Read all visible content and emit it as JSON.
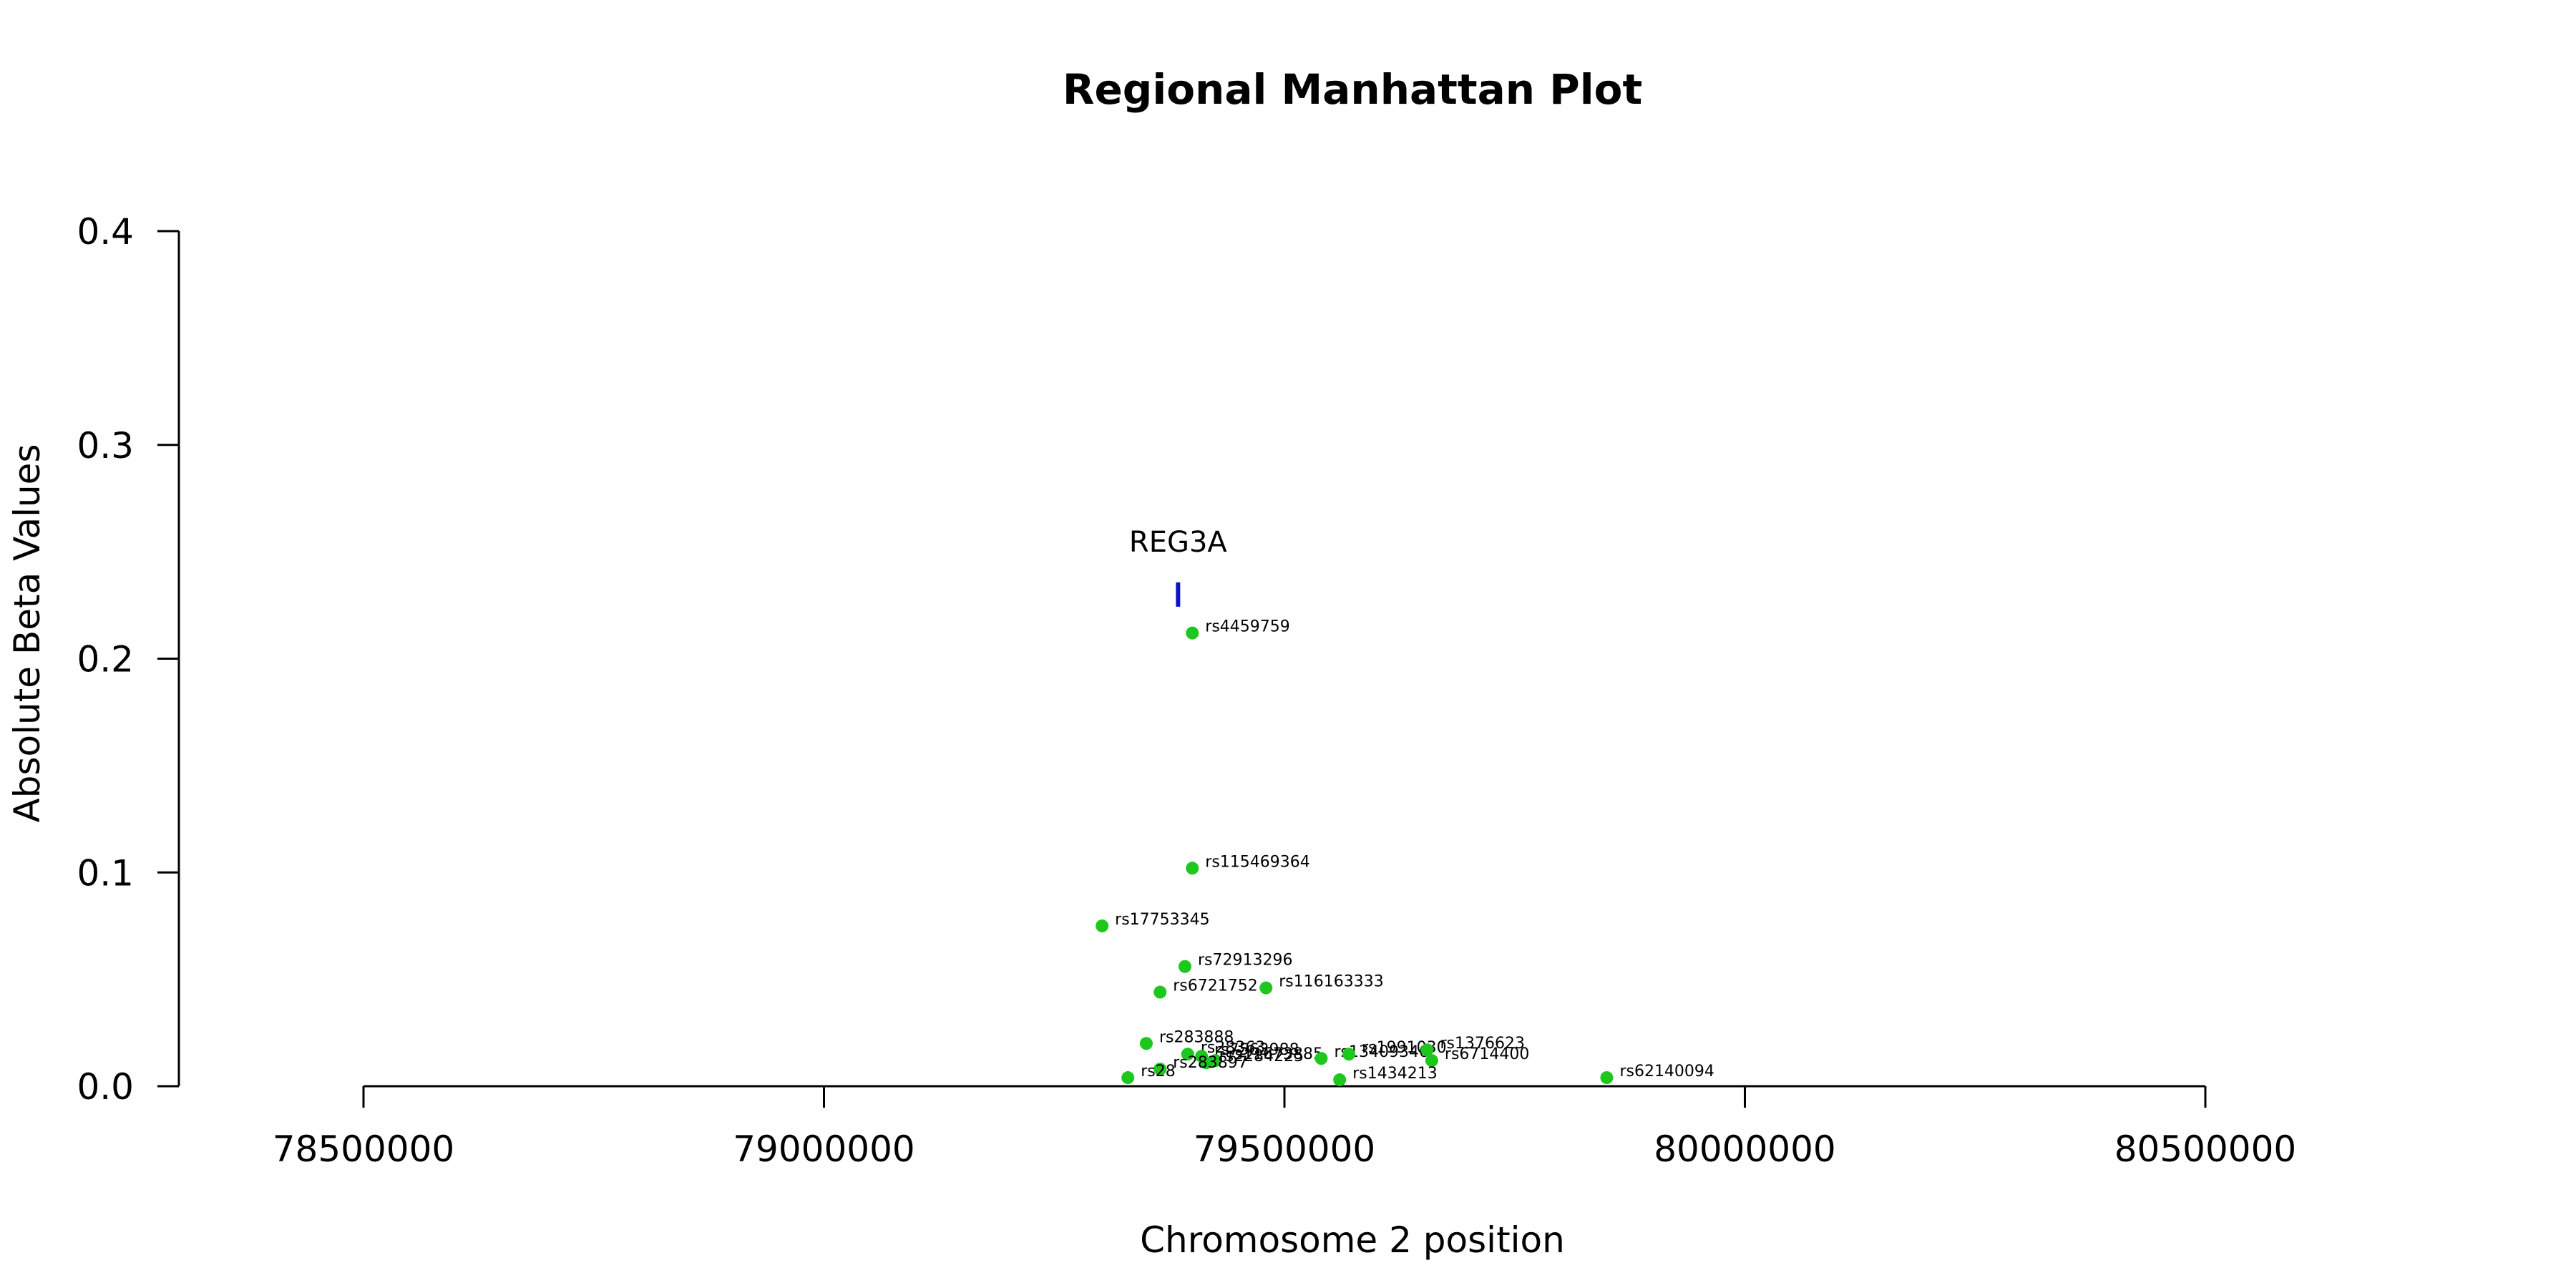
{
  "chart_data": {
    "type": "scatter",
    "title": "Regional Manhattan Plot",
    "xlabel": "Chromosome 2 position",
    "ylabel": "Absolute Beta Values",
    "xlim": [
      78500000,
      80500000
    ],
    "ylim": [
      0,
      0.4
    ],
    "xticks": [
      78500000,
      79000000,
      79500000,
      80000000,
      80500000
    ],
    "yticks": [
      0.0,
      0.1,
      0.2,
      0.3,
      0.4
    ],
    "xtick_labels": [
      "78500000",
      "79000000",
      "79500000",
      "80000000",
      "80500000"
    ],
    "ytick_labels": [
      "0.0",
      "0.1",
      "0.2",
      "0.3",
      "0.4"
    ],
    "grid": false,
    "point_color": "#1dc71d",
    "gene_color": "#1010c8",
    "genes": [
      {
        "name": "REG3A",
        "start": 79383000,
        "end": 79386000,
        "y": 0.23
      }
    ],
    "points": [
      {
        "label": "rs4459759",
        "x": 79400000,
        "y": 0.212
      },
      {
        "label": "rs115469364",
        "x": 79400000,
        "y": 0.102
      },
      {
        "label": "rs17753345",
        "x": 79302000,
        "y": 0.075
      },
      {
        "label": "rs72913296",
        "x": 79392000,
        "y": 0.056
      },
      {
        "label": "rs6721752",
        "x": 79365000,
        "y": 0.044
      },
      {
        "label": "rs116163333",
        "x": 79480000,
        "y": 0.046
      },
      {
        "label": "rs283888",
        "x": 79350000,
        "y": 0.02
      },
      {
        "label": "rs28363",
        "x": 79395000,
        "y": 0.015
      },
      {
        "label": "rs7563988",
        "x": 79410000,
        "y": 0.014
      },
      {
        "label": "rs11673885",
        "x": 79425000,
        "y": 0.012
      },
      {
        "label": "rs2284225",
        "x": 79415000,
        "y": 0.011
      },
      {
        "label": "rs283897",
        "x": 79365000,
        "y": 0.008
      },
      {
        "label": "rs28",
        "x": 79330000,
        "y": 0.004
      },
      {
        "label": "rs13409346",
        "x": 79540000,
        "y": 0.013
      },
      {
        "label": "rs1991030",
        "x": 79570000,
        "y": 0.015
      },
      {
        "label": "rs1376623",
        "x": 79655000,
        "y": 0.017
      },
      {
        "label": "rs6714400",
        "x": 79660000,
        "y": 0.012
      },
      {
        "label": "rs1434213",
        "x": 79560000,
        "y": 0.003
      },
      {
        "label": "rs62140094",
        "x": 79850000,
        "y": 0.004
      }
    ]
  }
}
